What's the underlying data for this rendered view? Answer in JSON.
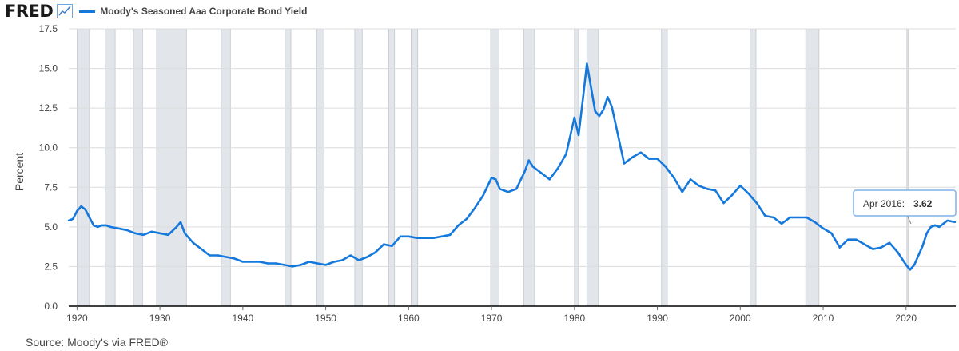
{
  "header": {
    "logo_text": "FRED",
    "logo_icon": "line-chart-icon",
    "series_label": "Moody's Seasoned Aaa Corporate Bond Yield"
  },
  "source": "Source: Moody's via FRED®",
  "tooltip": {
    "date": "Apr 2016:",
    "value": "3.62"
  },
  "colors": {
    "line": "#1478dc",
    "recession": "#e2e6ea",
    "grid": "#dcdcdc",
    "axis": "#000000"
  },
  "chart_data": {
    "type": "line",
    "title": "Moody's Seasoned Aaa Corporate Bond Yield",
    "xlabel": "",
    "ylabel": "Percent",
    "xlim": [
      1919,
      2026
    ],
    "ylim": [
      0,
      17.5
    ],
    "grid": "horizontal",
    "y_ticks": [
      "0.0",
      "2.5",
      "5.0",
      "7.5",
      "10.0",
      "12.5",
      "15.0",
      "17.5"
    ],
    "x_ticks": [
      "1920",
      "1930",
      "1940",
      "1950",
      "1960",
      "1970",
      "1980",
      "1990",
      "2000",
      "2010",
      "2020"
    ],
    "recessions": [
      [
        1920.0,
        1921.5
      ],
      [
        1923.4,
        1924.6
      ],
      [
        1926.8,
        1927.9
      ],
      [
        1929.6,
        1933.2
      ],
      [
        1937.4,
        1938.5
      ],
      [
        1945.1,
        1945.8
      ],
      [
        1948.9,
        1949.8
      ],
      [
        1953.5,
        1954.4
      ],
      [
        1957.6,
        1958.3
      ],
      [
        1960.3,
        1961.1
      ],
      [
        1969.9,
        1970.9
      ],
      [
        1973.9,
        1975.2
      ],
      [
        1980.0,
        1980.5
      ],
      [
        1981.5,
        1982.9
      ],
      [
        1990.5,
        1991.2
      ],
      [
        2001.2,
        2001.9
      ],
      [
        2007.9,
        2009.5
      ],
      [
        2020.1,
        2020.3
      ]
    ],
    "series": [
      {
        "name": "Moody's Seasoned Aaa Corporate Bond Yield",
        "x": [
          1919.0,
          1919.5,
          1920.0,
          1920.5,
          1921.0,
          1921.5,
          1922.0,
          1922.5,
          1923.0,
          1923.5,
          1924.0,
          1925.0,
          1926.0,
          1927.0,
          1928.0,
          1929.0,
          1930.0,
          1931.0,
          1932.0,
          1932.5,
          1933.0,
          1934.0,
          1935.0,
          1936.0,
          1937.0,
          1938.0,
          1939.0,
          1940.0,
          1941.0,
          1942.0,
          1943.0,
          1944.0,
          1945.0,
          1946.0,
          1947.0,
          1948.0,
          1949.0,
          1950.0,
          1951.0,
          1952.0,
          1953.0,
          1954.0,
          1955.0,
          1956.0,
          1957.0,
          1958.0,
          1959.0,
          1960.0,
          1961.0,
          1962.0,
          1963.0,
          1964.0,
          1965.0,
          1966.0,
          1967.0,
          1968.0,
          1969.0,
          1970.0,
          1970.5,
          1971.0,
          1972.0,
          1973.0,
          1974.0,
          1974.5,
          1975.0,
          1976.0,
          1977.0,
          1978.0,
          1979.0,
          1980.0,
          1980.5,
          1981.0,
          1981.5,
          1982.0,
          1982.5,
          1983.0,
          1983.5,
          1984.0,
          1984.5,
          1985.0,
          1986.0,
          1987.0,
          1988.0,
          1989.0,
          1990.0,
          1991.0,
          1992.0,
          1993.0,
          1994.0,
          1995.0,
          1996.0,
          1997.0,
          1998.0,
          1999.0,
          2000.0,
          2001.0,
          2002.0,
          2003.0,
          2004.0,
          2005.0,
          2006.0,
          2007.0,
          2008.0,
          2009.0,
          2010.0,
          2011.0,
          2012.0,
          2013.0,
          2014.0,
          2015.0,
          2016.0,
          2017.0,
          2018.0,
          2019.0,
          2020.0,
          2020.5,
          2021.0,
          2022.0,
          2022.5,
          2023.0,
          2023.5,
          2024.0,
          2025.0,
          2025.9
        ],
        "values": [
          5.4,
          5.5,
          6.0,
          6.3,
          6.1,
          5.6,
          5.1,
          5.0,
          5.1,
          5.1,
          5.0,
          4.9,
          4.8,
          4.6,
          4.5,
          4.7,
          4.6,
          4.5,
          5.0,
          5.3,
          4.6,
          4.0,
          3.6,
          3.2,
          3.2,
          3.1,
          3.0,
          2.8,
          2.8,
          2.8,
          2.7,
          2.7,
          2.6,
          2.5,
          2.6,
          2.8,
          2.7,
          2.6,
          2.8,
          2.9,
          3.2,
          2.9,
          3.1,
          3.4,
          3.9,
          3.8,
          4.4,
          4.4,
          4.3,
          4.3,
          4.3,
          4.4,
          4.5,
          5.1,
          5.5,
          6.2,
          7.0,
          8.1,
          8.0,
          7.4,
          7.2,
          7.4,
          8.5,
          9.2,
          8.8,
          8.4,
          8.0,
          8.7,
          9.6,
          11.9,
          10.8,
          13.0,
          15.3,
          13.8,
          12.3,
          12.0,
          12.4,
          13.2,
          12.6,
          11.4,
          9.0,
          9.4,
          9.7,
          9.3,
          9.3,
          8.8,
          8.1,
          7.2,
          8.0,
          7.6,
          7.4,
          7.3,
          6.5,
          7.0,
          7.6,
          7.1,
          6.5,
          5.7,
          5.6,
          5.2,
          5.6,
          5.6,
          5.6,
          5.3,
          4.9,
          4.6,
          3.7,
          4.2,
          4.2,
          3.9,
          3.6,
          3.7,
          4.0,
          3.4,
          2.6,
          2.3,
          2.6,
          3.8,
          4.6,
          5.0,
          5.1,
          5.0,
          5.4,
          5.3
        ]
      }
    ]
  }
}
